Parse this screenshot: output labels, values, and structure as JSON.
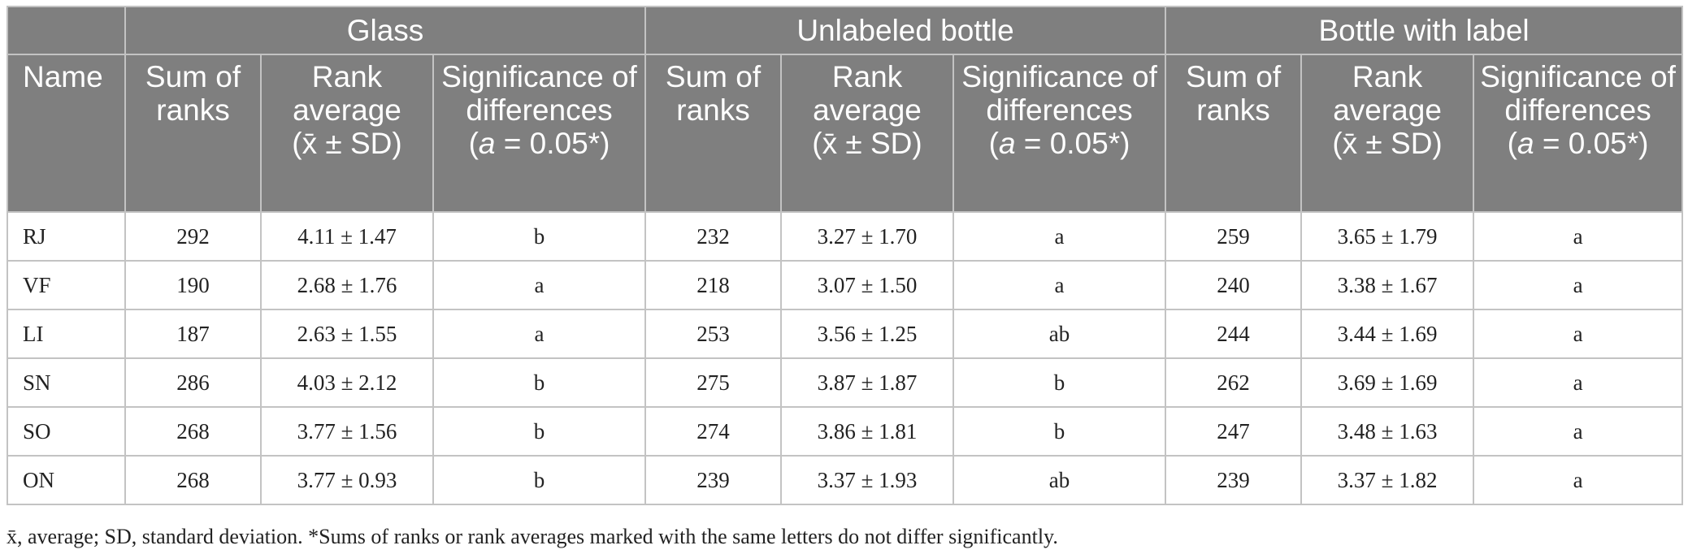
{
  "header": {
    "groups": [
      "Glass",
      "Unlabeled bottle",
      "Bottle with label"
    ],
    "name_col": "Name",
    "sum_of_ranks": "Sum of ranks",
    "rank_average_line1": "Rank average",
    "rank_average_line2": "(x̄ ± SD)",
    "significance_line1": "Significance of differences",
    "significance_alpha": "a",
    "significance_rest": " = 0.05*)",
    "significance_open": "("
  },
  "rows": [
    {
      "name": "RJ",
      "glass": [
        "292",
        "4.11 ± 1.47",
        "b"
      ],
      "unlabeled": [
        "232",
        "3.27 ± 1.70",
        "a"
      ],
      "labeled": [
        "259",
        "3.65 ± 1.79",
        "a"
      ]
    },
    {
      "name": "VF",
      "glass": [
        "190",
        "2.68 ± 1.76",
        "a"
      ],
      "unlabeled": [
        "218",
        "3.07 ± 1.50",
        "a"
      ],
      "labeled": [
        "240",
        "3.38 ± 1.67",
        "a"
      ]
    },
    {
      "name": "LI",
      "glass": [
        "187",
        "2.63 ± 1.55",
        "a"
      ],
      "unlabeled": [
        "253",
        "3.56 ± 1.25",
        "ab"
      ],
      "labeled": [
        "244",
        "3.44 ± 1.69",
        "a"
      ]
    },
    {
      "name": "SN",
      "glass": [
        "286",
        "4.03 ± 2.12",
        "b"
      ],
      "unlabeled": [
        "275",
        "3.87 ± 1.87",
        "b"
      ],
      "labeled": [
        "262",
        "3.69 ± 1.69",
        "a"
      ]
    },
    {
      "name": "SO",
      "glass": [
        "268",
        "3.77 ± 1.56",
        "b"
      ],
      "unlabeled": [
        "274",
        "3.86 ± 1.81",
        "b"
      ],
      "labeled": [
        "247",
        "3.48 ± 1.63",
        "a"
      ]
    },
    {
      "name": "ON",
      "glass": [
        "268",
        "3.77 ± 0.93",
        "b"
      ],
      "unlabeled": [
        "239",
        "3.37 ± 1.93",
        "ab"
      ],
      "labeled": [
        "239",
        "3.37 ± 1.82",
        "a"
      ]
    }
  ],
  "footnote": "x̄, average; SD, standard deviation. *Sums of ranks or rank averages marked with the same letters do not differ significantly.",
  "colors": {
    "header_bg": "#7f7f7f",
    "header_text": "#ffffff",
    "grid": "#c3c3c3"
  }
}
